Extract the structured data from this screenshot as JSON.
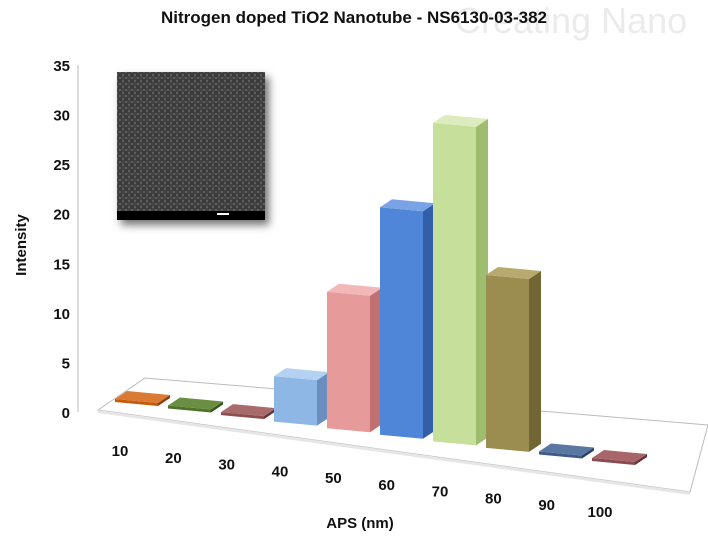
{
  "chart_data": {
    "type": "bar",
    "title": "Nitrogen doped TiO2 Nanotube - NS6130-03-382",
    "xlabel": "APS (nm)",
    "ylabel": "Intensity",
    "ylim": [
      0,
      35
    ],
    "yticks": [
      "0",
      "5",
      "10",
      "15",
      "20",
      "25",
      "30",
      "35"
    ],
    "categories": [
      "10",
      "20",
      "30",
      "40",
      "50",
      "60",
      "70",
      "80",
      "90",
      "100"
    ],
    "values": [
      0,
      0,
      0,
      5,
      15,
      25,
      35,
      19,
      0,
      0
    ],
    "bar_colors": [
      "#c35a0c",
      "#50722a",
      "#8e4e4e",
      "#8fb7e6",
      "#e69a9a",
      "#4f86d8",
      "#c6df9a",
      "#9b8c50",
      "#3e5a86",
      "#8a4a4e"
    ],
    "bar_side_colors": [
      "#8a3e08",
      "#39521d",
      "#653636",
      "#6a8fbf",
      "#c07070",
      "#335fa8",
      "#9ebd6e",
      "#726634",
      "#2a3f62",
      "#613236"
    ],
    "bar_top_colors": [
      "#d97a35",
      "#6a8f42",
      "#a86a6a",
      "#b5d1f2",
      "#f2b8b8",
      "#7aa3e6",
      "#dcecbf",
      "#b8aa6e",
      "#5a76a3",
      "#a8666a"
    ],
    "grid": false,
    "inset_image": "sem-micrograph-nanotube-array"
  },
  "watermark_text": "Creating  Nano"
}
